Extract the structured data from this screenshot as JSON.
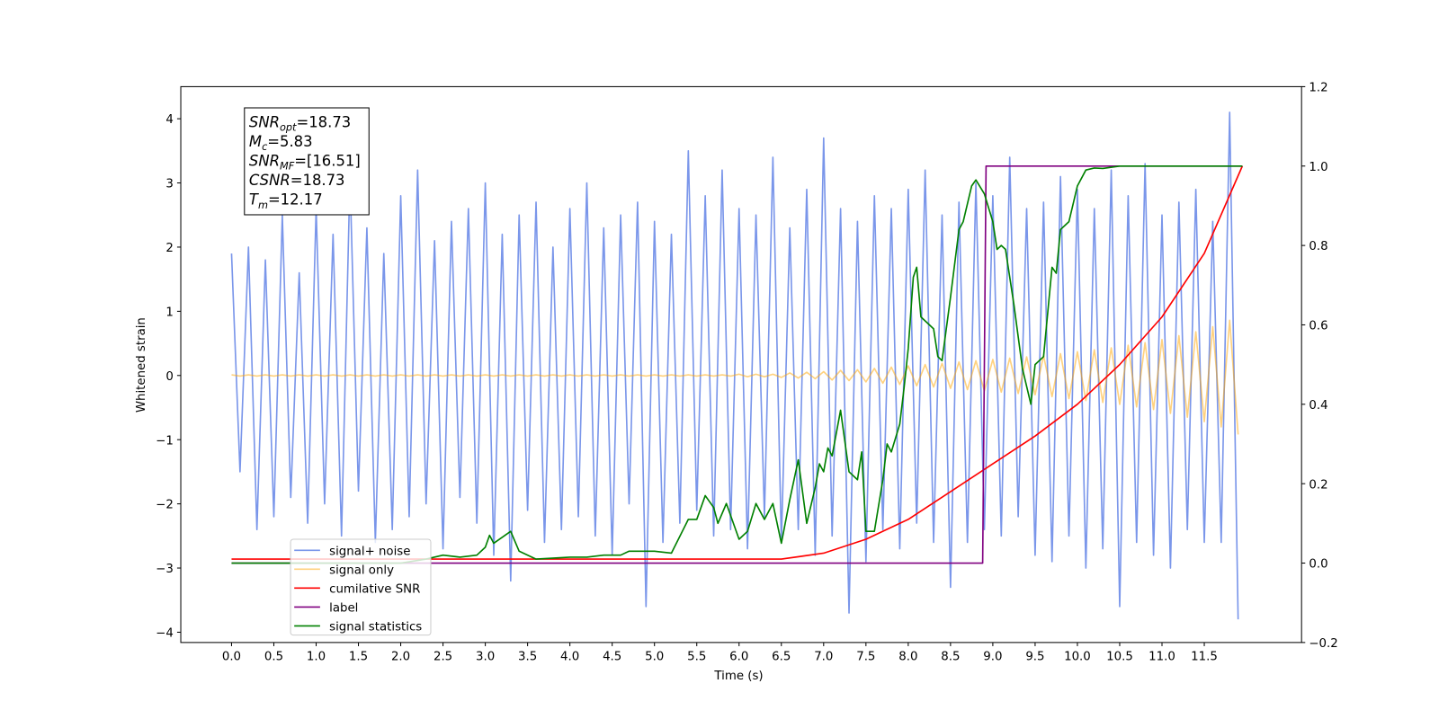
{
  "chart_data": {
    "type": "line",
    "xlabel": "Time (s)",
    "ylabel": "Whitened strain",
    "xlim": [
      -0.6,
      12.65
    ],
    "ylim": [
      -4.16,
      4.5
    ],
    "y2lim": [
      -0.2,
      1.2
    ],
    "xticks": [
      {
        "value": 0,
        "label": "0.0"
      },
      {
        "value": 0.5,
        "label": "0.5"
      },
      {
        "value": 1,
        "label": "1.0"
      },
      {
        "value": 1.5,
        "label": "1.5"
      },
      {
        "value": 2,
        "label": "2.0"
      },
      {
        "value": 2.5,
        "label": "2.5"
      },
      {
        "value": 3,
        "label": "3.0"
      },
      {
        "value": 3.5,
        "label": "3.5"
      },
      {
        "value": 4,
        "label": "4.0"
      },
      {
        "value": 4.5,
        "label": "4.5"
      },
      {
        "value": 5,
        "label": "5.0"
      },
      {
        "value": 5.5,
        "label": "5.5"
      },
      {
        "value": 6,
        "label": "6.0"
      },
      {
        "value": 6.5,
        "label": "6.5"
      },
      {
        "value": 7,
        "label": "7.0"
      },
      {
        "value": 7.5,
        "label": "7.5"
      },
      {
        "value": 8,
        "label": "8.0"
      },
      {
        "value": 8.5,
        "label": "8.5"
      },
      {
        "value": 9,
        "label": "9.0"
      },
      {
        "value": 9.5,
        "label": "9.5"
      },
      {
        "value": 10,
        "label": "10.0"
      },
      {
        "value": 10.5,
        "label": "10.5"
      },
      {
        "value": 11,
        "label": "11.0"
      },
      {
        "value": 11.5,
        "label": "11.5"
      }
    ],
    "yticks": [
      {
        "value": -4,
        "label": "−4"
      },
      {
        "value": -3,
        "label": "−3"
      },
      {
        "value": -2,
        "label": "−2"
      },
      {
        "value": -1,
        "label": "−1"
      },
      0,
      1,
      2,
      3,
      4
    ],
    "y2ticks": [
      {
        "value": -0.2,
        "label": "−0.2"
      },
      {
        "value": 0,
        "label": "0.0"
      },
      0.2,
      0.4,
      0.6,
      0.8,
      {
        "value": 1,
        "label": "1.0"
      },
      1.2
    ],
    "grid": false,
    "legend_loc": "lower left",
    "stats_box": [
      {
        "text": "SNR",
        "sub": "opt",
        "rest": "=18.73"
      },
      {
        "text": "M",
        "sub": "c",
        "rest": "=5.83"
      },
      {
        "text": "SNR",
        "sub": "MF",
        "rest": "=[16.51]"
      },
      {
        "text": "CSNR",
        "rest": "=18.73"
      },
      {
        "text": "T",
        "sub": "m",
        "rest": "=12.17"
      }
    ],
    "x": [
      0,
      0.1,
      0.2,
      0.3,
      0.4,
      0.5,
      0.6,
      0.7,
      0.8,
      0.9,
      1,
      1.1,
      1.2,
      1.3,
      1.4,
      1.5,
      1.6,
      1.7,
      1.8,
      1.9,
      2,
      2.1,
      2.2,
      2.3,
      2.4,
      2.5,
      2.6,
      2.7,
      2.8,
      2.9,
      3,
      3.1,
      3.2,
      3.3,
      3.4,
      3.5,
      3.6,
      3.7,
      3.8,
      3.9,
      4,
      4.1,
      4.2,
      4.3,
      4.4,
      4.5,
      4.6,
      4.7,
      4.8,
      4.9,
      5,
      5.1,
      5.2,
      5.3,
      5.4,
      5.5,
      5.6,
      5.7,
      5.8,
      5.9,
      6,
      6.1,
      6.2,
      6.3,
      6.4,
      6.5,
      6.6,
      6.7,
      6.8,
      6.9,
      7,
      7.1,
      7.2,
      7.3,
      7.4,
      7.5,
      7.6,
      7.7,
      7.8,
      7.9,
      8,
      8.1,
      8.2,
      8.3,
      8.4,
      8.5,
      8.6,
      8.7,
      8.8,
      8.9,
      9,
      9.1,
      9.2,
      9.3,
      9.4,
      9.5,
      9.6,
      9.7,
      9.8,
      9.9,
      10,
      10.1,
      10.2,
      10.3,
      10.4,
      10.5,
      10.6,
      10.7,
      10.8,
      10.9,
      11,
      11.1,
      11.2,
      11.3,
      11.4,
      11.5,
      11.6,
      11.7,
      11.8,
      11.9
    ],
    "series": [
      {
        "name": "signal+ noise",
        "color": "#4169e1",
        "alpha": 0.7,
        "values": [
          1.9,
          -1.5,
          2.0,
          -2.4,
          1.8,
          -2.2,
          2.5,
          -1.9,
          1.6,
          -2.3,
          2.6,
          -2.0,
          2.2,
          -2.5,
          3.1,
          -1.8,
          2.3,
          -2.6,
          1.9,
          -2.4,
          2.8,
          -2.2,
          3.2,
          -2.0,
          2.1,
          -2.7,
          2.4,
          -1.9,
          2.6,
          -2.3,
          3.0,
          -2.8,
          2.2,
          -3.2,
          2.5,
          -2.1,
          2.7,
          -2.6,
          2.0,
          -2.4,
          2.6,
          -2.2,
          3.0,
          -2.5,
          2.3,
          -2.8,
          2.5,
          -2.0,
          2.7,
          -3.6,
          2.4,
          -2.6,
          2.2,
          -2.3,
          3.5,
          -2.1,
          2.8,
          -2.5,
          3.2,
          -2.4,
          2.6,
          -2.7,
          2.5,
          -2.2,
          3.4,
          -2.6,
          2.3,
          -2.4,
          2.9,
          -2.8,
          3.7,
          -2.5,
          2.6,
          -3.7,
          2.4,
          -2.9,
          2.8,
          -2.4,
          2.6,
          -2.7,
          2.9,
          -2.3,
          3.2,
          -2.6,
          2.5,
          -3.3,
          2.7,
          -2.6,
          3.0,
          -2.4,
          2.8,
          -2.5,
          3.4,
          -2.2,
          2.6,
          -2.8,
          2.7,
          -2.9,
          3.1,
          -2.5,
          2.9,
          -3.0,
          2.6,
          -2.7,
          3.2,
          -3.6,
          2.8,
          -2.6,
          3.3,
          -2.8,
          2.5,
          -3.0,
          2.7,
          -2.4,
          2.9,
          -2.6,
          2.4,
          -2.6,
          4.1,
          -3.8
        ]
      },
      {
        "name": "signal only",
        "color": "#ffa500",
        "alpha": 0.5,
        "values": [
          0.01,
          -0.01,
          0.01,
          -0.01,
          0.01,
          -0.01,
          0.01,
          -0.01,
          0.01,
          -0.01,
          0.01,
          -0.01,
          0.01,
          -0.01,
          0.01,
          -0.01,
          0.01,
          -0.01,
          0.01,
          -0.01,
          0.01,
          -0.01,
          0.01,
          -0.01,
          0.01,
          -0.01,
          0.01,
          -0.01,
          0.01,
          -0.01,
          0.01,
          -0.01,
          0.01,
          -0.01,
          0.01,
          -0.01,
          0.01,
          -0.01,
          0.01,
          -0.01,
          0.01,
          -0.01,
          0.01,
          -0.01,
          0.01,
          -0.01,
          0.01,
          -0.01,
          0.01,
          -0.01,
          0.01,
          -0.01,
          0.01,
          -0.01,
          0.01,
          -0.01,
          0.01,
          -0.01,
          0.01,
          -0.01,
          0.02,
          -0.02,
          0.02,
          -0.02,
          0.02,
          -0.03,
          0.04,
          -0.04,
          0.05,
          -0.05,
          0.06,
          -0.07,
          0.08,
          -0.08,
          0.09,
          -0.1,
          0.11,
          -0.12,
          0.13,
          -0.14,
          0.15,
          -0.16,
          0.17,
          -0.18,
          0.19,
          -0.2,
          0.21,
          -0.22,
          0.23,
          -0.24,
          0.25,
          -0.26,
          0.27,
          -0.28,
          0.29,
          -0.3,
          0.31,
          -0.33,
          0.34,
          -0.36,
          0.37,
          -0.39,
          0.4,
          -0.42,
          0.43,
          -0.45,
          0.47,
          -0.49,
          0.51,
          -0.53,
          0.56,
          -0.59,
          0.62,
          -0.65,
          0.68,
          -0.72,
          0.76,
          -0.8,
          0.86,
          -0.92
        ]
      },
      {
        "name": "cumilative SNR",
        "color": "#ff0000",
        "axis": "y2",
        "x": [
          0,
          6.5,
          7,
          7.5,
          8,
          8.5,
          9,
          9.5,
          10,
          10.5,
          11,
          11.5,
          11.95
        ],
        "values": [
          0.01,
          0.01,
          0.025,
          0.06,
          0.11,
          0.18,
          0.25,
          0.32,
          0.4,
          0.5,
          0.62,
          0.78,
          1.0
        ]
      },
      {
        "name": "label",
        "color": "#800080",
        "axis": "y2",
        "x": [
          0,
          8.88,
          8.92,
          11.95
        ],
        "values": [
          0,
          0,
          1,
          1
        ]
      },
      {
        "name": "signal statistics",
        "color": "#008000",
        "axis": "y2",
        "x": [
          0,
          1,
          2,
          2.3,
          2.5,
          2.7,
          2.9,
          3,
          3.05,
          3.1,
          3.3,
          3.4,
          3.6,
          4,
          4.2,
          4.4,
          4.6,
          4.7,
          4.9,
          5,
          5.2,
          5.4,
          5.5,
          5.6,
          5.7,
          5.75,
          5.85,
          6,
          6.1,
          6.2,
          6.3,
          6.4,
          6.5,
          6.6,
          6.7,
          6.8,
          6.9,
          6.95,
          7,
          7.05,
          7.1,
          7.2,
          7.3,
          7.4,
          7.45,
          7.5,
          7.6,
          7.7,
          7.75,
          7.8,
          7.9,
          7.95,
          8,
          8.06,
          8.1,
          8.15,
          8.3,
          8.35,
          8.4,
          8.5,
          8.6,
          8.65,
          8.75,
          8.8,
          8.9,
          9,
          9.05,
          9.1,
          9.15,
          9.25,
          9.35,
          9.45,
          9.5,
          9.6,
          9.7,
          9.75,
          9.8,
          9.9,
          10,
          10.1,
          10.2,
          10.3,
          10.5,
          11.95
        ],
        "values": [
          0,
          0,
          0,
          0.01,
          0.02,
          0.015,
          0.02,
          0.04,
          0.07,
          0.05,
          0.08,
          0.03,
          0.01,
          0.015,
          0.015,
          0.02,
          0.02,
          0.03,
          0.03,
          0.03,
          0.025,
          0.11,
          0.11,
          0.17,
          0.14,
          0.1,
          0.15,
          0.06,
          0.08,
          0.15,
          0.11,
          0.15,
          0.05,
          0.16,
          0.26,
          0.1,
          0.19,
          0.25,
          0.23,
          0.29,
          0.27,
          0.385,
          0.23,
          0.21,
          0.28,
          0.08,
          0.08,
          0.21,
          0.3,
          0.28,
          0.35,
          0.44,
          0.54,
          0.72,
          0.745,
          0.62,
          0.59,
          0.52,
          0.51,
          0.67,
          0.84,
          0.86,
          0.95,
          0.965,
          0.93,
          0.86,
          0.79,
          0.8,
          0.79,
          0.65,
          0.49,
          0.4,
          0.5,
          0.52,
          0.745,
          0.73,
          0.84,
          0.86,
          0.95,
          0.99,
          0.995,
          0.994,
          1.0,
          1.0
        ]
      }
    ]
  }
}
